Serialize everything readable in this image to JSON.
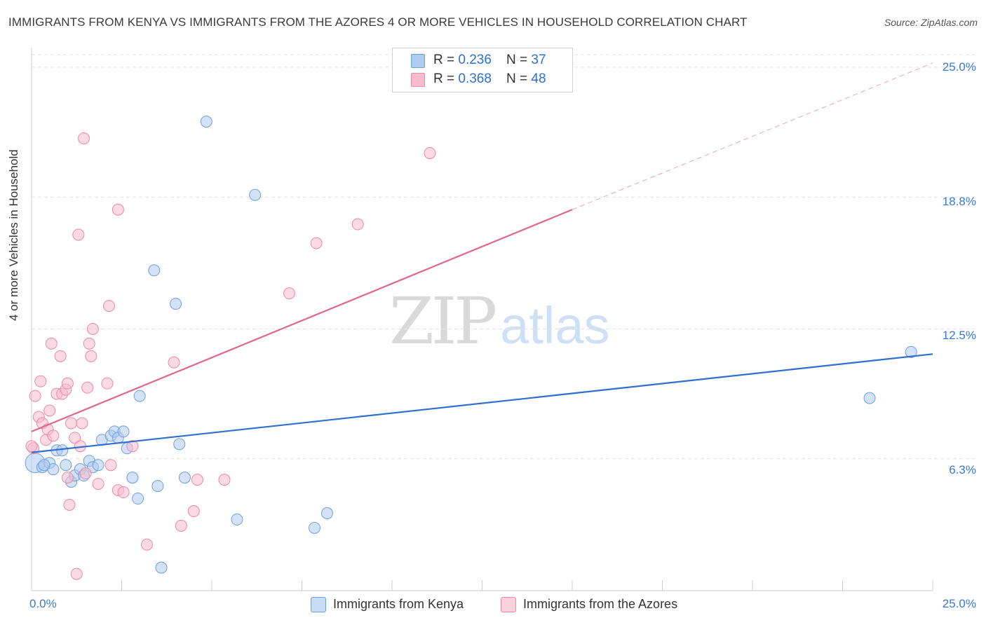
{
  "title": "IMMIGRANTS FROM KENYA VS IMMIGRANTS FROM THE AZORES 4 OR MORE VEHICLES IN HOUSEHOLD CORRELATION CHART",
  "source": "Source: ZipAtlas.com",
  "watermark": {
    "zip": "ZIP",
    "atlas": "atlas"
  },
  "legend": {
    "kenya": {
      "r_label": "R = ",
      "r_value": "0.236",
      "n_label": "N = ",
      "n_value": "37"
    },
    "azores": {
      "r_label": "R = ",
      "r_value": "0.368",
      "n_label": "N = ",
      "n_value": "48"
    }
  },
  "bottom_legend": {
    "kenya": "Immigrants from Kenya",
    "azores": "Immigrants from the Azores"
  },
  "colors": {
    "kenya_fill": "#aecbf0",
    "kenya_stroke": "#6f9fd8",
    "kenya_line": "#2f6fd0",
    "azores_fill": "#f7bccd",
    "azores_stroke": "#e88aa8",
    "azores_line": "#e06590",
    "tick_text": "#3a78d4",
    "grid": "#e3e3e3"
  },
  "chart_data": {
    "type": "scatter",
    "title": "IMMIGRANTS FROM KENYA VS IMMIGRANTS FROM THE AZORES 4 OR MORE VEHICLES IN HOUSEHOLD CORRELATION CHART",
    "xlabel": "",
    "ylabel": "4 or more Vehicles in Household",
    "xlim": [
      0,
      25
    ],
    "ylim": [
      0,
      25.6
    ],
    "x_tick_labels": [
      "0.0%",
      "25.0%"
    ],
    "y_ticks": [
      6.3,
      12.5,
      18.8,
      25.0
    ],
    "y_tick_labels": [
      "6.3%",
      "12.5%",
      "18.8%",
      "25.0%"
    ],
    "series": [
      {
        "name": "Immigrants from Kenya",
        "r": 0.236,
        "n": 37,
        "trend": {
          "x0": 0,
          "y0": 6.6,
          "x1": 25,
          "y1": 11.3,
          "dashed_to": null
        },
        "points": [
          {
            "x": 0.1,
            "y": 6.1,
            "big": true
          },
          {
            "x": 0.3,
            "y": 5.9
          },
          {
            "x": 0.5,
            "y": 6.1
          },
          {
            "x": 0.6,
            "y": 5.8
          },
          {
            "x": 0.7,
            "y": 6.7
          },
          {
            "x": 0.85,
            "y": 6.7
          },
          {
            "x": 0.95,
            "y": 6.0
          },
          {
            "x": 1.1,
            "y": 5.2
          },
          {
            "x": 1.2,
            "y": 5.5
          },
          {
            "x": 1.35,
            "y": 5.8
          },
          {
            "x": 1.45,
            "y": 5.5
          },
          {
            "x": 1.6,
            "y": 6.2
          },
          {
            "x": 1.7,
            "y": 5.9
          },
          {
            "x": 1.85,
            "y": 6.0
          },
          {
            "x": 1.95,
            "y": 7.2
          },
          {
            "x": 2.2,
            "y": 7.4
          },
          {
            "x": 2.3,
            "y": 7.6
          },
          {
            "x": 2.4,
            "y": 7.3
          },
          {
            "x": 2.55,
            "y": 7.6
          },
          {
            "x": 2.65,
            "y": 6.8
          },
          {
            "x": 2.8,
            "y": 5.4
          },
          {
            "x": 2.95,
            "y": 4.4
          },
          {
            "x": 3.0,
            "y": 9.3
          },
          {
            "x": 3.4,
            "y": 15.3
          },
          {
            "x": 3.5,
            "y": 5.0
          },
          {
            "x": 3.6,
            "y": 1.1
          },
          {
            "x": 4.0,
            "y": 13.7
          },
          {
            "x": 4.1,
            "y": 7.0
          },
          {
            "x": 4.25,
            "y": 5.4
          },
          {
            "x": 4.85,
            "y": 22.4
          },
          {
            "x": 5.7,
            "y": 3.4
          },
          {
            "x": 6.2,
            "y": 18.9
          },
          {
            "x": 7.85,
            "y": 3.0
          },
          {
            "x": 8.2,
            "y": 3.7
          },
          {
            "x": 23.25,
            "y": 9.2
          },
          {
            "x": 24.4,
            "y": 11.4
          },
          {
            "x": 0.35,
            "y": 6.0
          }
        ]
      },
      {
        "name": "Immigrants from the Azores",
        "r": 0.368,
        "n": 48,
        "trend": {
          "x0": 0,
          "y0": 7.6,
          "x1": 15,
          "y1": 18.2,
          "dashed_to": {
            "x": 25,
            "y": 25.2
          }
        },
        "points": [
          {
            "x": 0.05,
            "y": 6.8
          },
          {
            "x": 0.1,
            "y": 9.3
          },
          {
            "x": 0.2,
            "y": 8.3
          },
          {
            "x": 0.25,
            "y": 10.0
          },
          {
            "x": 0.3,
            "y": 8.0
          },
          {
            "x": 0.4,
            "y": 7.2
          },
          {
            "x": 0.45,
            "y": 7.7
          },
          {
            "x": 0.5,
            "y": 8.6
          },
          {
            "x": 0.55,
            "y": 11.8
          },
          {
            "x": 0.6,
            "y": 7.4
          },
          {
            "x": 0.7,
            "y": 9.4
          },
          {
            "x": 0.8,
            "y": 11.2
          },
          {
            "x": 0.85,
            "y": 9.4
          },
          {
            "x": 0.95,
            "y": 9.6
          },
          {
            "x": 1.0,
            "y": 9.9
          },
          {
            "x": 1.05,
            "y": 4.1
          },
          {
            "x": 1.0,
            "y": 5.4
          },
          {
            "x": 1.1,
            "y": 8.0
          },
          {
            "x": 1.2,
            "y": 7.3
          },
          {
            "x": 1.25,
            "y": 0.8
          },
          {
            "x": 1.3,
            "y": 17.0
          },
          {
            "x": 1.35,
            "y": 6.9
          },
          {
            "x": 1.4,
            "y": 8.0
          },
          {
            "x": 1.45,
            "y": 21.6
          },
          {
            "x": 1.5,
            "y": 5.6
          },
          {
            "x": 1.55,
            "y": 9.7
          },
          {
            "x": 1.6,
            "y": 11.8
          },
          {
            "x": 1.65,
            "y": 11.2
          },
          {
            "x": 1.7,
            "y": 12.5
          },
          {
            "x": 1.85,
            "y": 5.1
          },
          {
            "x": 2.1,
            "y": 9.9
          },
          {
            "x": 2.15,
            "y": 13.6
          },
          {
            "x": 2.2,
            "y": 6.0
          },
          {
            "x": 2.4,
            "y": 18.2
          },
          {
            "x": 2.4,
            "y": 4.8
          },
          {
            "x": 2.55,
            "y": 4.7
          },
          {
            "x": 2.8,
            "y": 6.9
          },
          {
            "x": 3.2,
            "y": 2.2
          },
          {
            "x": 3.95,
            "y": 10.9
          },
          {
            "x": 4.15,
            "y": 3.1
          },
          {
            "x": 4.5,
            "y": 3.8
          },
          {
            "x": 4.6,
            "y": 5.3
          },
          {
            "x": 5.35,
            "y": 5.3
          },
          {
            "x": 7.15,
            "y": 14.2
          },
          {
            "x": 7.9,
            "y": 16.6
          },
          {
            "x": 9.05,
            "y": 17.5
          },
          {
            "x": 11.05,
            "y": 20.9
          },
          {
            "x": 0.0,
            "y": 6.9
          }
        ]
      }
    ]
  }
}
